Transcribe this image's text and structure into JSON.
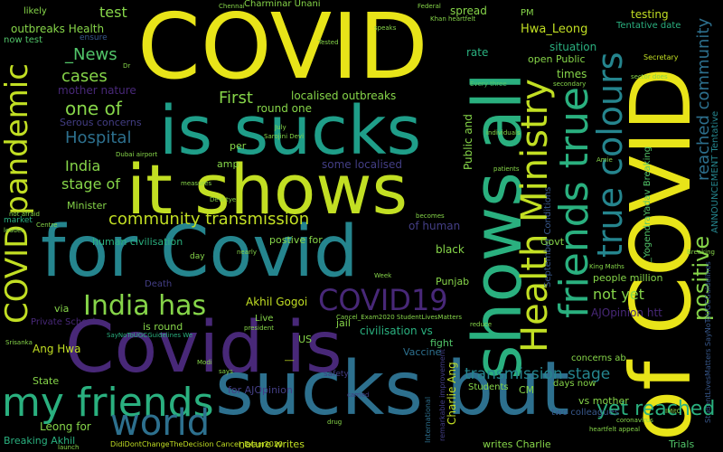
{
  "colors": {
    "background": "#000000",
    "yellow": "#e8e419",
    "lime": "#c2df23",
    "green": "#86d549",
    "mint": "#52c569",
    "teal": "#2ab07f",
    "aqua": "#1f9e89",
    "cyan": "#25858e",
    "blue": "#2d708e",
    "slate": "#38588c",
    "indigo": "#433e85",
    "purple": "#482878",
    "dark": "#440154"
  },
  "words": {
    "covid_big": "COVID",
    "is_sucks": "is sucks",
    "it_shows": "it shows",
    "for_covid": "for Covid",
    "covid_is": "Covid is",
    "sucks_but": "sucks but",
    "shows_all": "shows all",
    "of_covid": "of COVID",
    "my_friends": "my friends",
    "covid_pandemic": "COVID pandemic",
    "health_ministry": "Health Ministry",
    "friends_true": "friends true",
    "true_colours": "true colours",
    "covid19": "COVID19",
    "india_has": "India has",
    "world": "world",
    "community_transmission": "community transmission",
    "positive": "positive",
    "reached_community": "reached community",
    "yet_reached": "yet reached",
    "transmission_stage": "transmission stage",
    "hospital": "Hospital",
    "first": "First",
    "one_of": "one of",
    "news": "_News",
    "cases": "cases",
    "test": "test",
    "india": "India",
    "stage_of": "stage of",
    "outbreaks_health": "outbreaks Health",
    "localised_outbreaks": "localised outbreaks",
    "some_localised": "some localised",
    "not_yet": "not yet",
    "people_million": "people million",
    "ajopinion_htt": "AJOpinion htt",
    "testing": "testing",
    "tentative_date": "Tentative date",
    "hwa_leong": "Hwa_Leong",
    "situation": "situation",
    "open_public": "open Public",
    "charminar_unani": "Charminar Unani",
    "spread": "spread",
    "rate": "rate",
    "times": "times",
    "likely": "likely",
    "now_test": "now test",
    "mother_nature": "mother nature",
    "serous_concerns": "Serous concerns",
    "round_one": "round one",
    "human_civilisation": "human civilisation",
    "postive_for": "postive for",
    "of_human": "of human",
    "black": "black",
    "govt": "Govt",
    "punjab": "Punjab",
    "akhil_gogoi": "Akhil Gogoi",
    "is_round": "is round",
    "death": "Death",
    "via": "via",
    "ang_hwa": "Ang Hwa",
    "private_schools": "Private Schools",
    "civilisation_vs": "civilisation vs",
    "us": "US",
    "fight": "fight",
    "vaccine": "Vaccine",
    "concerns_ab": "concerns ab",
    "days_now": "days now",
    "vs_mother": "vs mother",
    "two_colleagues": "two colleagues",
    "charlie_ang": "Charlie Ang",
    "students": "Students",
    "cm": "CM",
    "leong_for": "Leong for",
    "breaking_akhil": "Breaking Akhil",
    "for_ajopinion": "for AJOpinion",
    "state": "State",
    "nature_writes": "nature writes",
    "writes_charlie": "writes Charlie",
    "trials": "Trials",
    "minister": "Minister",
    "amp": "amp",
    "per": "per",
    "day": "day",
    "jail": "jail",
    "live": "Live",
    "public_and": "Public and",
    "yogendra": "_YogendraYadav Breaking",
    "announcement": "ANNOUNCEMENT Tentative",
    "september": "September Conditions",
    "pm": "PM",
    "dots": "​​ _​​​_​​",
    "ensure": "ensure",
    "secretary": "Secretary",
    "cancel_exam": "Cancel_Exam2020 StudentLivesMatters",
    "didi": "DidiDontChangeTheDecision Cancel_Exam2020",
    "saynoto": "SayNoToUGCGuidelines We",
    "dubai": "Dubai airport",
    "sarojini": "Sarojini Devi",
    "khan": "Khan heartfelt",
    "every_three": "Every three",
    "individuals": "individuals",
    "patients": "patients",
    "sector": "sector does",
    "king": "King Maths",
    "coronavirus": "coronavirus",
    "heartfelt_appeal": "heartfelt appeal",
    "imitc": "IMitC",
    "launch": "launch",
    "drug": "drug",
    "carried": "carried",
    "modi": "Modi",
    "says": "says",
    "srisanka": "Srisanka",
    "president": "president",
    "reduce": "reduce",
    "week": "Week",
    "not_afraid": "not afraid",
    "market": "market",
    "centre": "Centre",
    "leader": "leader",
    "tested": "Tested",
    "chennai": "Chennai",
    "federal": "Federal",
    "speaks": "speaks",
    "secondary": "secondary",
    "devi_tye": "Devi tye",
    "measures": "measures",
    "safety": "safety",
    "international": "International",
    "becomes": "becomes",
    "nearly": "nearly",
    "july": "July",
    "dr": "Dr",
    "amie": "Amie",
    "remarkable": "remarkable improvement",
    "breaking_small": "Breaking",
    "student_lives": "StudentLivesMatters SayNoToUGCGuidelines"
  }
}
